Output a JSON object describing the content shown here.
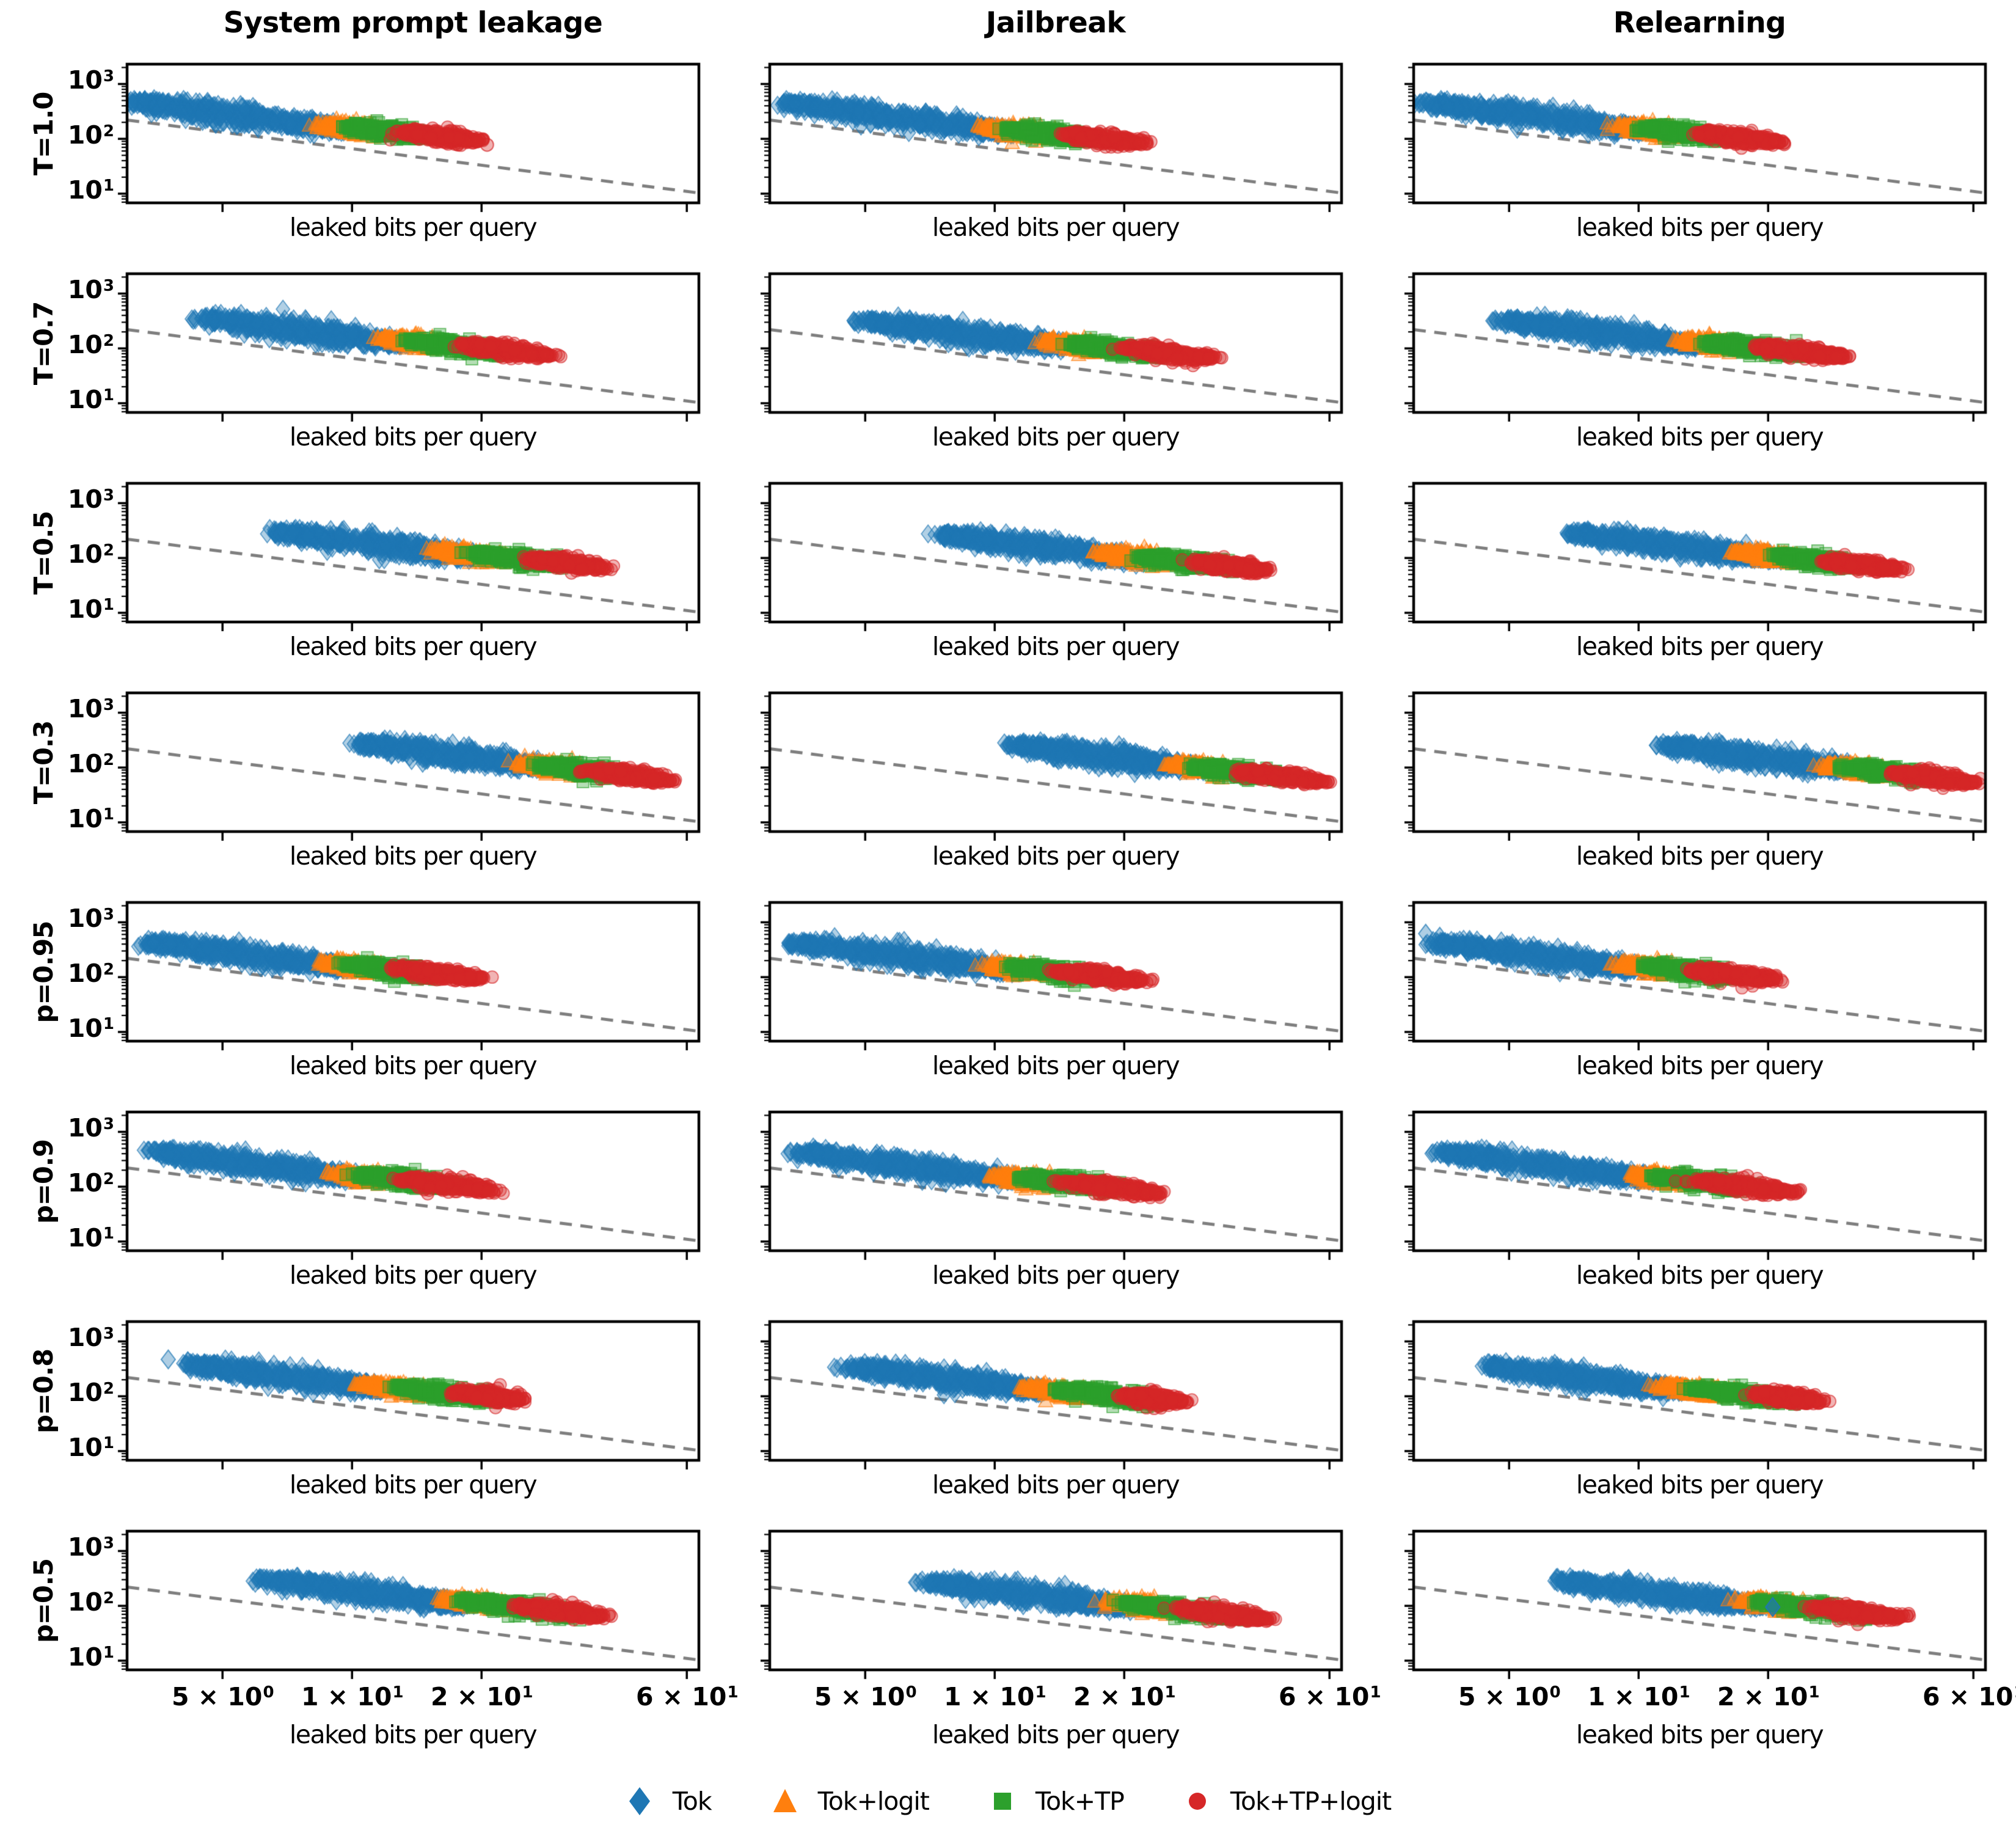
{
  "figure_title": "",
  "chart_data": {
    "type": "scatter",
    "log_x": true,
    "log_y": true,
    "grid": "off",
    "legend_position": "bottom-center",
    "col_titles": [
      "System prompt leakage",
      "Jailbreak",
      "Relearning"
    ],
    "row_labels": [
      "T=1.0",
      "T=0.7",
      "T=0.5",
      "T=0.3",
      "p=0.95",
      "p=0.9",
      "p=0.8",
      "p=0.5"
    ],
    "xlabel": "leaked bits per query",
    "xlim": [
      3.0,
      64
    ],
    "ylim": [
      6.8,
      2300
    ],
    "x_ticks": [
      {
        "v": 5,
        "base": "5 × 10",
        "exp": "0"
      },
      {
        "v": 10,
        "base": "1 × 10",
        "exp": "1"
      },
      {
        "v": 20,
        "base": "2 × 10",
        "exp": "1"
      },
      {
        "v": 60,
        "base": "6 × 10",
        "exp": "1"
      }
    ],
    "y_ticks": [
      {
        "v": 1000,
        "base": "10",
        "exp": "3"
      },
      {
        "v": 100,
        "base": "10",
        "exp": "2"
      },
      {
        "v": 10,
        "base": "10",
        "exp": "1"
      }
    ],
    "guide_line": {
      "style": "dashed",
      "color": "#7f7f7f",
      "x": [
        3.0,
        64
      ],
      "y": [
        220,
        10.3
      ],
      "meaning": "y = 660/x reference"
    },
    "series": [
      {
        "name": "Tok",
        "marker": "diamond",
        "color": "#1f77b4",
        "n": 540,
        "sigma": 0.085
      },
      {
        "name": "Tok+logit",
        "marker": "triangle",
        "color": "#ff7f0e",
        "n": 250,
        "sigma": 0.06
      },
      {
        "name": "Tok+TP",
        "marker": "square",
        "color": "#2ca02c",
        "n": 310,
        "sigma": 0.065
      },
      {
        "name": "Tok+TP+logit",
        "marker": "circle",
        "color": "#d62728",
        "n": 300,
        "sigma": 0.06
      }
    ],
    "cluster_format": "[series_index, x_start, x_end, C] where cluster center follows y = C/x (log-log band)",
    "outlier_format": "[series_index, x, y, alpha(optional)]",
    "subplots": [
      {
        "r": 0,
        "c": 0,
        "clusters": [
          [
            0,
            3.05,
            9.8,
            1450
          ],
          [
            1,
            8.55,
            12.1,
            1550
          ],
          [
            2,
            9.8,
            15.3,
            1650
          ],
          [
            3,
            13.3,
            19.5,
            1800
          ]
        ],
        "outliers": [
          [
            3,
            20.6,
            78
          ]
        ]
      },
      {
        "r": 0,
        "c": 1,
        "clusters": [
          [
            0,
            3.3,
            11.0,
            1450
          ],
          [
            1,
            9.6,
            13.6,
            1550
          ],
          [
            2,
            11.0,
            17.1,
            1650
          ],
          [
            3,
            14.9,
            21.8,
            1800
          ]
        ],
        "outliers": []
      },
      {
        "r": 0,
        "c": 2,
        "clusters": [
          [
            0,
            3.2,
            10.4,
            1450
          ],
          [
            1,
            9.1,
            12.8,
            1550
          ],
          [
            2,
            10.4,
            16.2,
            1650
          ],
          [
            3,
            14.1,
            20.7,
            1800
          ]
        ],
        "outliers": [
          [
            3,
            21.8,
            80
          ]
        ]
      },
      {
        "r": 1,
        "c": 0,
        "clusters": [
          [
            0,
            4.5,
            13.2,
            1575
          ],
          [
            1,
            11.8,
            17.2,
            1770
          ],
          [
            2,
            13.7,
            22.7,
            1900
          ],
          [
            3,
            18.2,
            28.4,
            2100
          ]
        ],
        "outliers": []
      },
      {
        "r": 1,
        "c": 1,
        "clusters": [
          [
            0,
            5.0,
            14.8,
            1575
          ],
          [
            1,
            13.2,
            19.3,
            1770
          ],
          [
            2,
            15.3,
            25.4,
            1900
          ],
          [
            3,
            20.4,
            31.8,
            2100
          ]
        ],
        "outliers": []
      },
      {
        "r": 1,
        "c": 2,
        "clusters": [
          [
            0,
            4.8,
            14.0,
            1575
          ],
          [
            1,
            12.5,
            18.2,
            1770
          ],
          [
            2,
            14.5,
            24.1,
            1900
          ],
          [
            3,
            19.3,
            30.1,
            2100
          ]
        ],
        "outliers": []
      },
      {
        "r": 2,
        "c": 0,
        "clusters": [
          [
            0,
            6.7,
            19.6,
            2000
          ],
          [
            1,
            15.9,
            23.5,
            2200
          ],
          [
            2,
            19.6,
            31.3,
            2350
          ],
          [
            3,
            26.3,
            37.5,
            2500
          ]
        ],
        "outliers": []
      },
      {
        "r": 2,
        "c": 1,
        "clusters": [
          [
            0,
            7.5,
            22.0,
            2000
          ],
          [
            1,
            17.8,
            26.3,
            2200
          ],
          [
            2,
            22.0,
            35.1,
            2350
          ],
          [
            3,
            29.5,
            42.0,
            2500
          ]
        ],
        "outliers": []
      },
      {
        "r": 2,
        "c": 2,
        "clusters": [
          [
            0,
            7.1,
            20.8,
            2000
          ],
          [
            1,
            16.9,
            24.9,
            2200
          ],
          [
            2,
            20.8,
            33.2,
            2350
          ],
          [
            3,
            27.9,
            39.8,
            2500
          ]
        ],
        "outliers": []
      },
      {
        "r": 3,
        "c": 0,
        "clusters": [
          [
            0,
            10.5,
            28.0,
            2900
          ],
          [
            1,
            25.0,
            36.0,
            3000
          ],
          [
            2,
            28.0,
            44.0,
            3100
          ],
          [
            3,
            36.0,
            54.0,
            3150
          ]
        ],
        "outliers": []
      },
      {
        "r": 3,
        "c": 1,
        "clusters": [
          [
            0,
            11.0,
            29.4,
            2900
          ],
          [
            1,
            26.3,
            37.8,
            3000
          ],
          [
            2,
            29.4,
            46.2,
            3100
          ],
          [
            3,
            37.8,
            56.7,
            3150
          ]
        ],
        "outliers": []
      },
      {
        "r": 3,
        "c": 2,
        "clusters": [
          [
            0,
            11.6,
            30.8,
            2900
          ],
          [
            1,
            27.5,
            39.6,
            3000
          ],
          [
            2,
            30.8,
            48.4,
            3100
          ],
          [
            3,
            39.6,
            59.4,
            3150
          ]
        ],
        "outliers": [
          [
            0,
            11.0,
            255
          ]
        ]
      },
      {
        "r": 4,
        "c": 0,
        "clusters": [
          [
            0,
            3.36,
            9.9,
            1445
          ],
          [
            1,
            8.8,
            11.8,
            1600
          ],
          [
            2,
            10.0,
            16.5,
            1750
          ],
          [
            3,
            12.7,
            19.5,
            1850
          ]
        ],
        "outliers": []
      },
      {
        "r": 4,
        "c": 1,
        "clusters": [
          [
            0,
            3.4,
            11.1,
            1445
          ],
          [
            1,
            9.9,
            13.2,
            1600
          ],
          [
            2,
            11.2,
            18.5,
            1750
          ],
          [
            3,
            14.2,
            21.8,
            1850
          ]
        ],
        "outliers": []
      },
      {
        "r": 4,
        "c": 2,
        "clusters": [
          [
            0,
            3.4,
            10.5,
            1445
          ],
          [
            1,
            9.3,
            12.5,
            1600
          ],
          [
            2,
            10.6,
            17.5,
            1750
          ],
          [
            3,
            13.5,
            20.7,
            1850
          ]
        ],
        "outliers": [
          [
            0,
            3.2,
            620
          ],
          [
            0,
            3.45,
            545
          ]
        ]
      },
      {
        "r": 5,
        "c": 0,
        "clusters": [
          [
            0,
            3.45,
            10.3,
            1500
          ],
          [
            1,
            9.2,
            12.6,
            1610
          ],
          [
            2,
            10.5,
            17.2,
            1750
          ],
          [
            3,
            13.2,
            21.2,
            1800
          ]
        ],
        "outliers": []
      },
      {
        "r": 5,
        "c": 1,
        "clusters": [
          [
            0,
            3.5,
            11.5,
            1500
          ],
          [
            1,
            10.3,
            14.1,
            1610
          ],
          [
            2,
            11.8,
            19.3,
            1750
          ],
          [
            3,
            14.8,
            23.7,
            1800
          ]
        ],
        "outliers": []
      },
      {
        "r": 5,
        "c": 2,
        "clusters": [
          [
            0,
            3.5,
            10.9,
            1500
          ],
          [
            1,
            9.8,
            13.4,
            1610
          ],
          [
            2,
            11.1,
            18.2,
            1750
          ],
          [
            3,
            14.0,
            22.5,
            1800
          ]
        ],
        "outliers": []
      },
      {
        "r": 6,
        "c": 0,
        "clusters": [
          [
            0,
            4.2,
            11.8,
            1600
          ],
          [
            1,
            10.7,
            15.9,
            1750
          ],
          [
            2,
            12.7,
            21.8,
            1900
          ],
          [
            3,
            17.9,
            24.3,
            2100
          ]
        ],
        "outliers": [
          [
            0,
            3.74,
            470
          ]
        ]
      },
      {
        "r": 6,
        "c": 1,
        "clusters": [
          [
            0,
            4.7,
            13.2,
            1600
          ],
          [
            1,
            12.0,
            17.8,
            1750
          ],
          [
            2,
            14.2,
            24.4,
            1900
          ],
          [
            3,
            20.0,
            27.2,
            2100
          ]
        ],
        "outliers": []
      },
      {
        "r": 6,
        "c": 2,
        "clusters": [
          [
            0,
            4.5,
            12.5,
            1600
          ],
          [
            1,
            11.3,
            16.9,
            1750
          ],
          [
            2,
            13.5,
            23.1,
            1900
          ],
          [
            3,
            19.0,
            25.8,
            2100
          ]
        ],
        "outliers": []
      },
      {
        "r": 7,
        "c": 0,
        "clusters": [
          [
            0,
            6.2,
            18.2,
            1900
          ],
          [
            1,
            16.5,
            23.5,
            2200
          ],
          [
            2,
            18.2,
            33.5,
            2300
          ],
          [
            3,
            24.5,
            37.5,
            2450
          ]
        ],
        "outliers": []
      },
      {
        "r": 7,
        "c": 1,
        "clusters": [
          [
            0,
            6.9,
            20.4,
            1900
          ],
          [
            1,
            18.5,
            26.3,
            2200
          ],
          [
            2,
            20.4,
            37.5,
            2300
          ],
          [
            3,
            27.4,
            42.0,
            2450
          ]
        ],
        "outliers": []
      },
      {
        "r": 7,
        "c": 2,
        "clusters": [
          [
            0,
            6.6,
            19.3,
            1900
          ],
          [
            1,
            17.5,
            24.9,
            2200
          ],
          [
            2,
            19.3,
            35.5,
            2300
          ],
          [
            3,
            26.0,
            39.8,
            2450
          ]
        ],
        "outliers": [
          [
            0,
            20.5,
            95,
            0.85
          ]
        ]
      }
    ]
  }
}
